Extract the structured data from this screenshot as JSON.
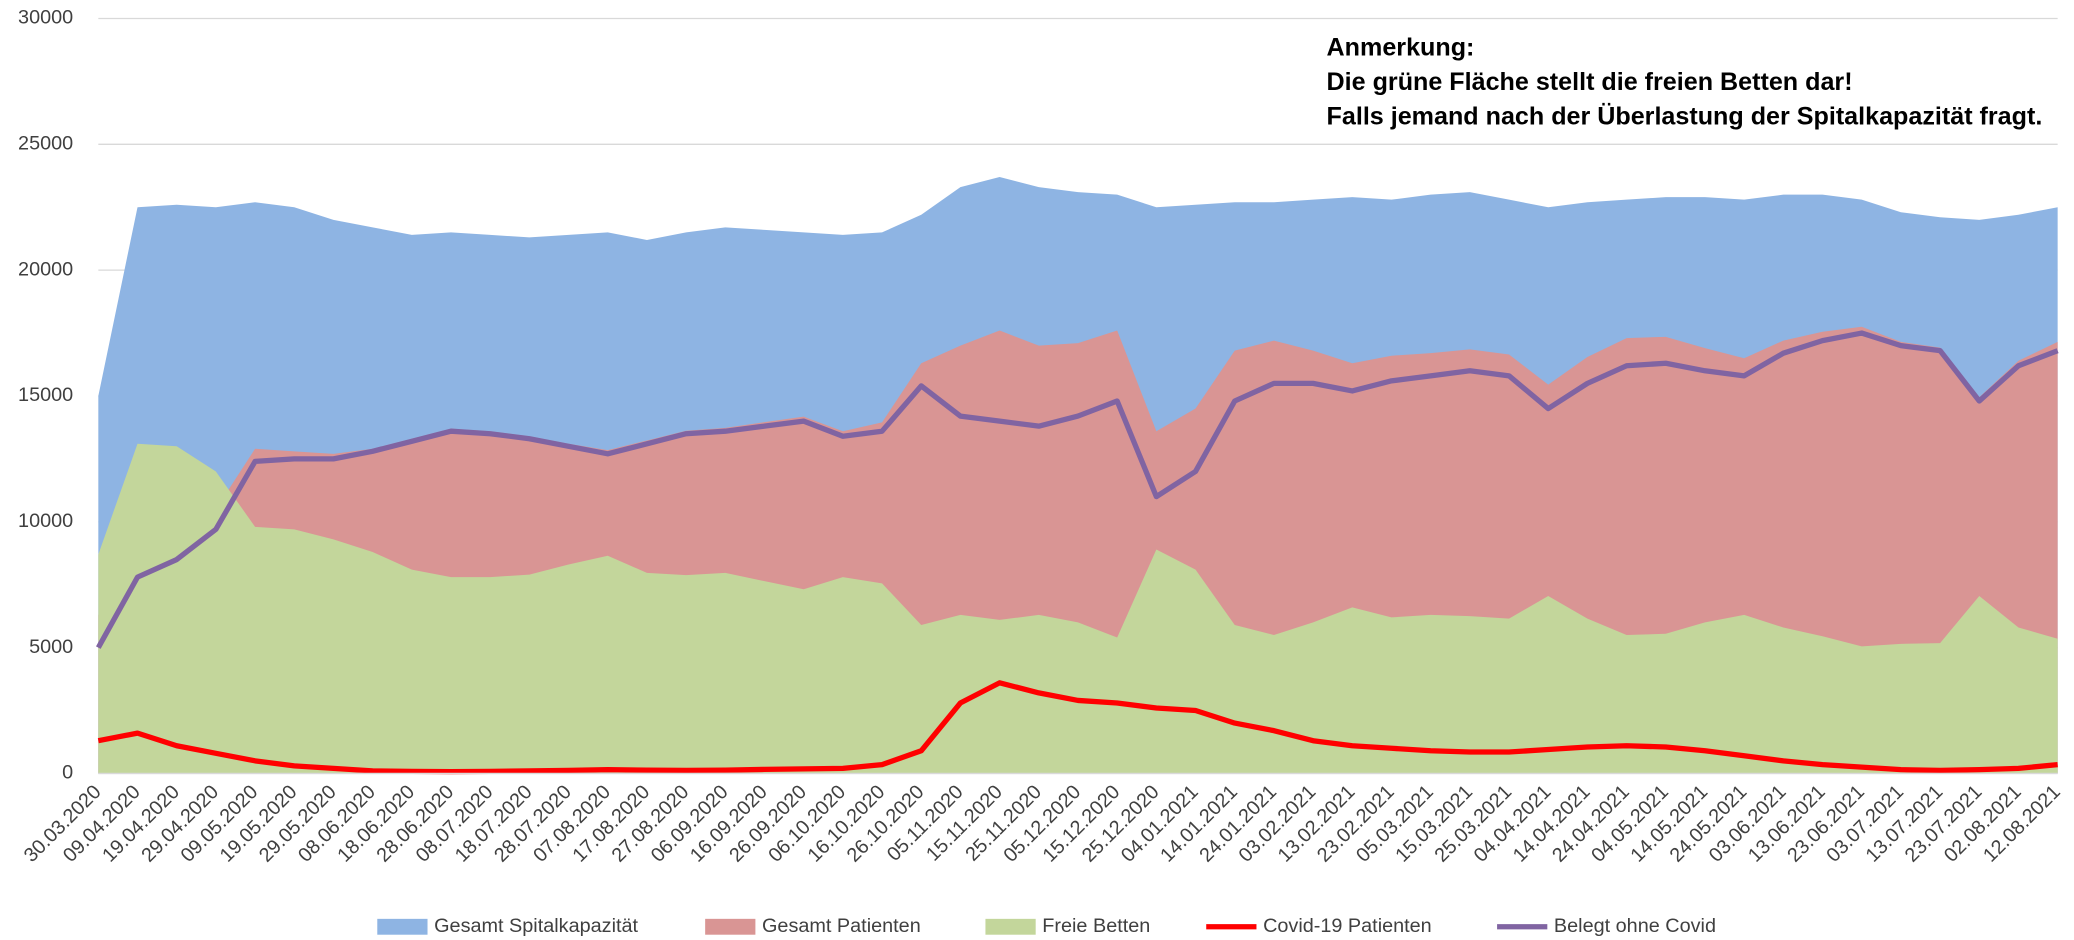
{
  "chart_data": {
    "type": "area",
    "annotation": [
      "Anmerkung:",
      "Die grüne Fläche stellt die freien Betten dar!",
      "Falls jemand nach der Überlastung der Spitalkapazität fragt."
    ],
    "categories": [
      "30.03.2020",
      "09.04.2020",
      "19.04.2020",
      "29.04.2020",
      "09.05.2020",
      "19.05.2020",
      "29.05.2020",
      "08.06.2020",
      "18.06.2020",
      "28.06.2020",
      "08.07.2020",
      "18.07.2020",
      "28.07.2020",
      "07.08.2020",
      "17.08.2020",
      "27.08.2020",
      "06.09.2020",
      "16.09.2020",
      "26.09.2020",
      "06.10.2020",
      "16.10.2020",
      "26.10.2020",
      "05.11.2020",
      "15.11.2020",
      "25.11.2020",
      "05.12.2020",
      "15.12.2020",
      "25.12.2020",
      "04.01.2021",
      "14.01.2021",
      "24.01.2021",
      "03.02.2021",
      "13.02.2021",
      "23.02.2021",
      "05.03.2021",
      "15.03.2021",
      "25.03.2021",
      "04.04.2021",
      "14.04.2021",
      "24.04.2021",
      "04.05.2021",
      "14.05.2021",
      "24.05.2021",
      "03.06.2021",
      "13.06.2021",
      "23.06.2021",
      "03.07.2021",
      "13.07.2021",
      "23.07.2021",
      "02.08.2021",
      "12.08.2021"
    ],
    "series": [
      {
        "name": "Gesamt Spitalkapazität",
        "style": "area",
        "color": "#8eb4e3",
        "values": [
          15000,
          22500,
          22600,
          22500,
          22700,
          22500,
          22000,
          21700,
          21400,
          21500,
          21400,
          21300,
          21400,
          21500,
          21200,
          21500,
          21700,
          21600,
          21500,
          21400,
          21500,
          22200,
          23300,
          23700,
          23300,
          23100,
          23000,
          22500,
          22600,
          22700,
          22700,
          22800,
          22900,
          22800,
          23000,
          23100,
          22800,
          22500,
          22700,
          22800,
          22900,
          22900,
          22800,
          23000,
          23000,
          22800,
          22300,
          22100,
          22000,
          22200,
          22500
        ]
      },
      {
        "name": "Gesamt Patienten",
        "style": "area",
        "color": "#d99594",
        "values": [
          6300,
          9400,
          9600,
          10500,
          12900,
          12800,
          12700,
          12900,
          13300,
          13700,
          13600,
          13400,
          13100,
          12850,
          13230,
          13620,
          13730,
          13960,
          14180,
          13600,
          13950,
          16300,
          17000,
          17600,
          17000,
          17100,
          17600,
          13600,
          14500,
          16800,
          17200,
          16800,
          16300,
          16600,
          16700,
          16850,
          16650,
          15450,
          16550,
          17300,
          17350,
          16900,
          16500,
          17200,
          17550,
          17750,
          17150,
          16920,
          14950,
          16400,
          17150
        ]
      },
      {
        "name": "Freie Betten",
        "style": "area",
        "color": "#c3d69b",
        "values": [
          8700,
          13100,
          13000,
          12000,
          9800,
          9700,
          9300,
          8800,
          8100,
          7800,
          7800,
          7900,
          8300,
          8650,
          7970,
          7880,
          7970,
          7640,
          7320,
          7800,
          7550,
          5900,
          6300,
          6100,
          6300,
          6000,
          5400,
          8900,
          8100,
          5900,
          5500,
          6000,
          6600,
          6200,
          6300,
          6250,
          6150,
          7050,
          6150,
          5500,
          5550,
          6000,
          6300,
          5800,
          5450,
          5050,
          5150,
          5180,
          7050,
          5800,
          5350
        ]
      },
      {
        "name": "Covid-19 Patienten",
        "style": "line",
        "color": "#ff0000",
        "values": [
          1300,
          1600,
          1100,
          800,
          500,
          300,
          200,
          100,
          80,
          70,
          80,
          100,
          120,
          150,
          130,
          120,
          130,
          160,
          180,
          200,
          350,
          900,
          2800,
          3600,
          3200,
          2900,
          2800,
          2600,
          2500,
          2000,
          1700,
          1300,
          1100,
          1000,
          900,
          850,
          850,
          950,
          1050,
          1100,
          1050,
          900,
          700,
          500,
          350,
          250,
          150,
          120,
          150,
          200,
          350
        ]
      },
      {
        "name": "Belegt ohne Covid",
        "style": "line",
        "color": "#8064a2",
        "values": [
          5000,
          7800,
          8500,
          9700,
          12400,
          12500,
          12500,
          12800,
          13200,
          13600,
          13500,
          13300,
          13000,
          12700,
          13100,
          13500,
          13600,
          13800,
          14000,
          13400,
          13600,
          15400,
          14200,
          14000,
          13800,
          14200,
          14800,
          11000,
          12000,
          14800,
          15500,
          15500,
          15200,
          15600,
          15800,
          16000,
          15800,
          14500,
          15500,
          16200,
          16300,
          16000,
          15800,
          16700,
          17200,
          17500,
          17000,
          16800,
          14800,
          16200,
          16800
        ]
      }
    ],
    "ylim": [
      0,
      30000
    ],
    "yticks": [
      0,
      5000,
      10000,
      15000,
      20000,
      25000,
      30000
    ],
    "grid": true,
    "legend": "bottom"
  }
}
